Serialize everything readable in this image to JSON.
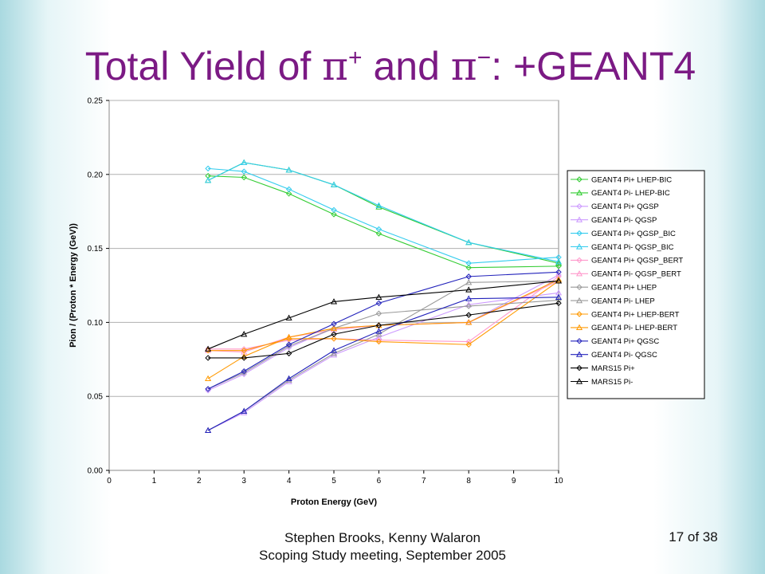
{
  "slide": {
    "title_main": "Total Yield of ",
    "pi_symbol": "π",
    "plus_sup": "+",
    "and_word": " and ",
    "minus_sup": "−",
    "title_end": ": +GEANT4",
    "author_line": "Stephen Brooks, Kenny Walaron",
    "meeting_line": "Scoping Study meeting, September 2005",
    "page_indicator": "17 of 38"
  },
  "chart_data": {
    "type": "line",
    "title": "",
    "xlabel": "Proton Energy (GeV)",
    "ylabel": "Pion / (Proton * Energy (GeV))",
    "xlim": [
      0,
      10
    ],
    "ylim": [
      0,
      0.25
    ],
    "xticks": [
      0,
      1,
      2,
      3,
      4,
      5,
      6,
      7,
      8,
      9,
      10
    ],
    "xtick_labels": [
      "0",
      "1",
      "2",
      "3",
      "4",
      "5",
      "6",
      "7",
      "8",
      "9",
      "10"
    ],
    "yticks": [
      0,
      0.05,
      0.1,
      0.15,
      0.2,
      0.25
    ],
    "ytick_labels": [
      "0.00",
      "0.05",
      "0.10",
      "0.15",
      "0.20",
      "0.25"
    ],
    "grid": "horizontal",
    "legend_position": "right",
    "x": [
      2.2,
      3,
      4,
      5,
      6,
      8,
      10
    ],
    "series": [
      {
        "name": "GEANT4 Pi+ LHEP-BIC",
        "color": "#33cc33",
        "marker": "diamond",
        "values": [
          0.199,
          0.198,
          0.187,
          0.173,
          0.16,
          0.137,
          0.138
        ]
      },
      {
        "name": "GEANT4 Pi- LHEP-BIC",
        "color": "#33cc33",
        "marker": "triangle",
        "values": [
          0.196,
          0.208,
          0.203,
          0.193,
          0.178,
          0.154,
          0.14
        ]
      },
      {
        "name": "GEANT4 Pi+ QGSP",
        "color": "#cc99ff",
        "marker": "diamond",
        "values": [
          0.054,
          0.065,
          0.083,
          0.096,
          0.098,
          0.1,
          0.132
        ]
      },
      {
        "name": "GEANT4 Pi- QGSP",
        "color": "#cc99ff",
        "marker": "triangle",
        "values": [
          0.027,
          0.039,
          0.06,
          0.078,
          0.09,
          0.112,
          0.12
        ]
      },
      {
        "name": "GEANT4 Pi+ QGSP_BIC",
        "color": "#33ccee",
        "marker": "diamond",
        "values": [
          0.204,
          0.202,
          0.19,
          0.176,
          0.163,
          0.14,
          0.144
        ]
      },
      {
        "name": "GEANT4 Pi- QGSP_BIC",
        "color": "#33ccee",
        "marker": "triangle",
        "values": [
          0.196,
          0.208,
          0.203,
          0.193,
          0.179,
          0.154,
          0.141
        ]
      },
      {
        "name": "GEANT4 Pi+ QGSP_BERT",
        "color": "#ff99cc",
        "marker": "diamond",
        "values": [
          0.082,
          0.082,
          0.088,
          0.089,
          0.088,
          0.087,
          0.131
        ]
      },
      {
        "name": "GEANT4 Pi- QGSP_BERT",
        "color": "#ff99cc",
        "marker": "triangle",
        "values": [
          0.081,
          0.08,
          0.09,
          0.095,
          0.098,
          0.1,
          0.128
        ]
      },
      {
        "name": "GEANT4 Pi+ LHEP",
        "color": "#999999",
        "marker": "diamond",
        "values": [
          0.055,
          0.066,
          0.084,
          0.096,
          0.106,
          0.111,
          0.115
        ]
      },
      {
        "name": "GEANT4 Pi- LHEP",
        "color": "#999999",
        "marker": "triangle",
        "values": [
          0.027,
          0.04,
          0.061,
          0.079,
          0.092,
          0.127,
          0.128
        ]
      },
      {
        "name": "GEANT4 Pi+ LHEP-BERT",
        "color": "#ff9900",
        "marker": "diamond",
        "values": [
          0.081,
          0.081,
          0.089,
          0.089,
          0.087,
          0.085,
          0.128
        ]
      },
      {
        "name": "GEANT4 Pi- LHEP-BERT",
        "color": "#ff9900",
        "marker": "triangle",
        "values": [
          0.062,
          0.077,
          0.09,
          0.096,
          0.098,
          0.1,
          0.129
        ]
      },
      {
        "name": "GEANT4 Pi+ QGSC",
        "color": "#2222bb",
        "marker": "diamond",
        "values": [
          0.055,
          0.067,
          0.085,
          0.099,
          0.113,
          0.131,
          0.134
        ]
      },
      {
        "name": "GEANT4 Pi- QGSC",
        "color": "#2222bb",
        "marker": "triangle",
        "values": [
          0.027,
          0.04,
          0.062,
          0.081,
          0.094,
          0.116,
          0.117
        ]
      },
      {
        "name": "MARS15 Pi+",
        "color": "#000000",
        "marker": "diamond",
        "values": [
          0.076,
          0.076,
          0.079,
          0.092,
          0.098,
          0.105,
          0.113
        ]
      },
      {
        "name": "MARS15 Pi-",
        "color": "#000000",
        "marker": "triangle",
        "values": [
          0.082,
          0.092,
          0.103,
          0.114,
          0.117,
          0.122,
          0.128
        ]
      }
    ]
  }
}
